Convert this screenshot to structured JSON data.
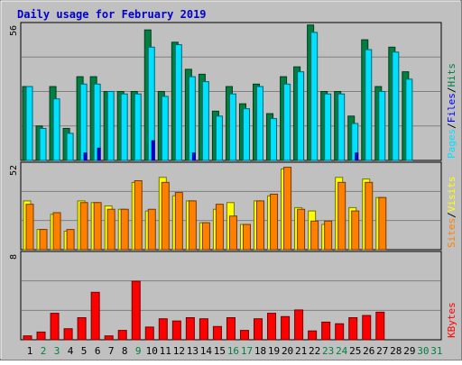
{
  "title": "Daily usage for February 2019",
  "colors": {
    "background": "#c0c0c0",
    "title": "#0000cc",
    "hits": "#008040",
    "files": "#00e0ff",
    "pages": "#0000ff",
    "visits": "#ffff00",
    "sites": "#ff8000",
    "kbytes": "#ff0000",
    "weekday_label": "#000000",
    "weekend_label": "#008040"
  },
  "chart_data": [
    {
      "type": "bar",
      "name": "hits-files-pages",
      "label_parts": [
        "Pages",
        "/",
        "Files",
        "/",
        "Hits"
      ],
      "ymax_label": "56",
      "ylim": [
        0,
        56
      ],
      "categories": [
        "1",
        "2",
        "3",
        "4",
        "5",
        "6",
        "7",
        "8",
        "9",
        "10",
        "11",
        "12",
        "13",
        "14",
        "15",
        "16",
        "17",
        "18",
        "19",
        "20",
        "21",
        "22",
        "23",
        "24",
        "25",
        "26",
        "27",
        "28",
        "29",
        "30",
        "31"
      ],
      "series": [
        {
          "name": "Hits",
          "values": [
            30,
            14,
            30,
            13,
            34,
            34,
            28,
            28,
            28,
            53,
            28,
            48,
            37,
            35,
            20,
            30,
            23,
            31,
            19,
            34,
            38,
            55,
            28,
            28,
            18,
            49,
            30,
            46,
            36,
            0,
            0
          ]
        },
        {
          "name": "Files",
          "values": [
            30,
            13,
            25,
            11,
            31,
            31,
            28,
            27,
            27,
            46,
            26,
            47,
            34,
            32,
            18,
            27,
            21,
            30,
            17,
            31,
            36,
            52,
            27,
            27,
            15,
            45,
            28,
            44,
            33,
            0,
            0
          ]
        },
        {
          "name": "Pages",
          "values": [
            0,
            0,
            0,
            0,
            3,
            5,
            0,
            0,
            0,
            8,
            0,
            0,
            3,
            0,
            0,
            0,
            0,
            0,
            0,
            0,
            0,
            0,
            0,
            0,
            3,
            0,
            0,
            0,
            0,
            0,
            0
          ]
        }
      ]
    },
    {
      "type": "bar",
      "name": "visits-sites",
      "label_parts": [
        "Sites",
        "/",
        "Visits"
      ],
      "ymax_label": "52",
      "ylim": [
        0,
        52
      ],
      "categories": [
        "1",
        "2",
        "3",
        "4",
        "5",
        "6",
        "7",
        "8",
        "9",
        "10",
        "11",
        "12",
        "13",
        "14",
        "15",
        "16",
        "17",
        "18",
        "19",
        "20",
        "21",
        "22",
        "23",
        "24",
        "25",
        "26",
        "27",
        "28",
        "29",
        "30",
        "31"
      ],
      "series": [
        {
          "name": "Visits",
          "values": [
            29,
            12,
            21,
            11,
            29,
            28,
            26,
            24,
            40,
            23,
            43,
            32,
            29,
            16,
            24,
            28,
            15,
            29,
            32,
            48,
            25,
            23,
            15,
            43,
            25,
            42,
            31,
            0,
            0,
            0,
            0
          ]
        },
        {
          "name": "Sites",
          "values": [
            27,
            12,
            22,
            12,
            28,
            28,
            24,
            24,
            41,
            24,
            40,
            34,
            29,
            16,
            27,
            20,
            15,
            29,
            33,
            49,
            24,
            17,
            17,
            40,
            23,
            40,
            31,
            0,
            0,
            0,
            0
          ]
        }
      ]
    },
    {
      "type": "bar",
      "name": "kbytes",
      "label_parts": [
        "KBytes"
      ],
      "ymax_label": "8",
      "ylim": [
        0,
        8
      ],
      "categories": [
        "1",
        "2",
        "3",
        "4",
        "5",
        "6",
        "7",
        "8",
        "9",
        "10",
        "11",
        "12",
        "13",
        "14",
        "15",
        "16",
        "17",
        "18",
        "19",
        "20",
        "21",
        "22",
        "23",
        "24",
        "25",
        "26",
        "27",
        "28",
        "29",
        "30",
        "31"
      ],
      "series": [
        {
          "name": "KBytes",
          "values": [
            0.35,
            0.7,
            2.4,
            1.0,
            2.0,
            4.3,
            0.35,
            0.85,
            5.3,
            1.15,
            1.9,
            1.7,
            2.0,
            1.9,
            1.2,
            2.0,
            0.85,
            1.9,
            2.4,
            2.1,
            2.7,
            0.8,
            1.6,
            1.45,
            2.0,
            2.2,
            2.5,
            0,
            0,
            0,
            0
          ]
        }
      ]
    }
  ],
  "day_labels": [
    "1",
    "2",
    "3",
    "4",
    "5",
    "6",
    "7",
    "8",
    "9",
    "10",
    "11",
    "12",
    "13",
    "14",
    "15",
    "16",
    "17",
    "18",
    "19",
    "20",
    "21",
    "22",
    "23",
    "24",
    "25",
    "26",
    "27",
    "28",
    "29",
    "30",
    "31"
  ],
  "weekend_days": [
    "2",
    "3",
    "9",
    "16",
    "17",
    "23",
    "24",
    "30",
    "31"
  ]
}
